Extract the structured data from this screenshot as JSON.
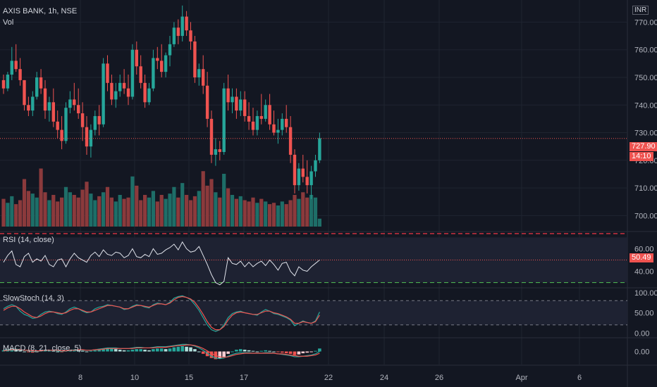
{
  "header": {
    "symbol": "AXIS BANK, 1h, NSE",
    "volume_label": "Vol",
    "currency": "INR"
  },
  "colors": {
    "background": "#131722",
    "grid": "#1f2430",
    "up": "#26a69a",
    "down": "#ef5350",
    "vol_up": "#1e6e68",
    "vol_down": "#8b3a3c",
    "text": "#b2b5be",
    "rsi_line": "#e0e3eb",
    "stoch_k": "#26a69a",
    "stoch_d": "#ef5350",
    "dashed_red": "#f23645",
    "dashed_green": "#4caf50"
  },
  "price_badge": {
    "price": "727.90",
    "countdown": "14:10"
  },
  "chart_data": [
    {
      "type": "candlestick",
      "pane": "price",
      "ylim": [
        695,
        778
      ],
      "y_ticks": [
        "770.00",
        "760.00",
        "750.00",
        "740.00",
        "730.00",
        "720.00",
        "710.00",
        "700.00"
      ],
      "x_ticks": [
        "8",
        "10",
        "15",
        "17",
        "22",
        "24",
        "26",
        "Apr",
        "6"
      ],
      "last_price": 727.9,
      "ohlc": [
        [
          749,
          751,
          744,
          746
        ],
        [
          746,
          752,
          745,
          751
        ],
        [
          751,
          761,
          749,
          756
        ],
        [
          756,
          762,
          752,
          753
        ],
        [
          753,
          757,
          747,
          749
        ],
        [
          749,
          749,
          738,
          740
        ],
        [
          740,
          743,
          736,
          738
        ],
        [
          738,
          745,
          736,
          743
        ],
        [
          743,
          752,
          742,
          750
        ],
        [
          750,
          753,
          744,
          746
        ],
        [
          746,
          749,
          735,
          738
        ],
        [
          738,
          743,
          734,
          741
        ],
        [
          741,
          746,
          732,
          734
        ],
        [
          734,
          738,
          728,
          731
        ],
        [
          731,
          736,
          724,
          727
        ],
        [
          727,
          741,
          726,
          739
        ],
        [
          739,
          745,
          737,
          742
        ],
        [
          742,
          748,
          738,
          740
        ],
        [
          740,
          746,
          735,
          737
        ],
        [
          737,
          741,
          727,
          732
        ],
        [
          732,
          736,
          722,
          725
        ],
        [
          725,
          733,
          721,
          731
        ],
        [
          731,
          738,
          729,
          736
        ],
        [
          736,
          740,
          729,
          733
        ],
        [
          733,
          757,
          732,
          755
        ],
        [
          755,
          758,
          745,
          748
        ],
        [
          748,
          751,
          740,
          742
        ],
        [
          742,
          748,
          739,
          745
        ],
        [
          745,
          751,
          743,
          748
        ],
        [
          748,
          753,
          744,
          746
        ],
        [
          746,
          751,
          740,
          743
        ],
        [
          743,
          762,
          742,
          760
        ],
        [
          760,
          763,
          751,
          754
        ],
        [
          754,
          758,
          746,
          748
        ],
        [
          748,
          751,
          739,
          741
        ],
        [
          741,
          748,
          740,
          746
        ],
        [
          746,
          760,
          745,
          757
        ],
        [
          757,
          761,
          753,
          756
        ],
        [
          756,
          762,
          750,
          752
        ],
        [
          752,
          759,
          750,
          758
        ],
        [
          758,
          765,
          754,
          762
        ],
        [
          762,
          770,
          761,
          768
        ],
        [
          768,
          771,
          762,
          765
        ],
        [
          765,
          776,
          763,
          772
        ],
        [
          772,
          774,
          765,
          767
        ],
        [
          767,
          770,
          760,
          763
        ],
        [
          763,
          765,
          748,
          750
        ],
        [
          750,
          755,
          747,
          753
        ],
        [
          753,
          758,
          744,
          747
        ],
        [
          747,
          752,
          732,
          735
        ],
        [
          735,
          738,
          719,
          722
        ],
        [
          722,
          728,
          718,
          724
        ],
        [
          724,
          727,
          720,
          723
        ],
        [
          723,
          748,
          722,
          746
        ],
        [
          746,
          751,
          738,
          741
        ],
        [
          741,
          746,
          737,
          743
        ],
        [
          743,
          746,
          735,
          738
        ],
        [
          738,
          745,
          736,
          742
        ],
        [
          742,
          745,
          734,
          736
        ],
        [
          736,
          741,
          731,
          734
        ],
        [
          734,
          739,
          729,
          731
        ],
        [
          731,
          738,
          729,
          736
        ],
        [
          736,
          744,
          733,
          735
        ],
        [
          735,
          742,
          734,
          740
        ],
        [
          740,
          744,
          731,
          733
        ],
        [
          733,
          738,
          729,
          730
        ],
        [
          730,
          735,
          726,
          731
        ],
        [
          731,
          737,
          729,
          735
        ],
        [
          735,
          740,
          730,
          732
        ],
        [
          732,
          736,
          719,
          722
        ],
        [
          722,
          724,
          708,
          711
        ],
        [
          711,
          719,
          709,
          717
        ],
        [
          717,
          722,
          712,
          714
        ],
        [
          714,
          720,
          708,
          711
        ],
        [
          711,
          718,
          706,
          716
        ],
        [
          716,
          722,
          714,
          720
        ],
        [
          720,
          730,
          719,
          728
        ]
      ]
    },
    {
      "type": "bar",
      "pane": "volume",
      "name": "Vol",
      "values": [
        21,
        18,
        23,
        17,
        20,
        36,
        27,
        25,
        22,
        44,
        26,
        20,
        24,
        19,
        22,
        30,
        26,
        24,
        22,
        28,
        34,
        25,
        20,
        23,
        26,
        30,
        22,
        19,
        24,
        21,
        22,
        38,
        31,
        20,
        24,
        22,
        27,
        19,
        24,
        21,
        25,
        30,
        22,
        33,
        24,
        20,
        23,
        27,
        42,
        31,
        36,
        26,
        22,
        40,
        29,
        24,
        21,
        23,
        20,
        19,
        22,
        18,
        21,
        19,
        17,
        18,
        16,
        19,
        17,
        20,
        24,
        21,
        26,
        22,
        24,
        22,
        6
      ],
      "max_scale": 48
    },
    {
      "type": "line",
      "pane": "rsi",
      "title": "RSI (14, close)",
      "ylim": [
        26,
        74
      ],
      "y_ticks": [
        "60.00",
        "40.00"
      ],
      "last_value": "50.49",
      "upper_level": 70,
      "lower_level": 30,
      "values": [
        48,
        54,
        58,
        46,
        44,
        53,
        56,
        48,
        51,
        49,
        54,
        46,
        44,
        50,
        51,
        44,
        51,
        56,
        52,
        50,
        48,
        54,
        57,
        53,
        59,
        55,
        54,
        57,
        56,
        52,
        54,
        60,
        53,
        52,
        55,
        53,
        60,
        55,
        56,
        59,
        61,
        64,
        59,
        66,
        60,
        57,
        58,
        62,
        54,
        46,
        37,
        30,
        28,
        31,
        52,
        47,
        46,
        49,
        44,
        48,
        44,
        47,
        49,
        45,
        50,
        46,
        41,
        47,
        48,
        40,
        36,
        44,
        41,
        40,
        44,
        47,
        50
      ]
    },
    {
      "type": "line",
      "pane": "stochastic",
      "title": "SlowStoch (14, 3)",
      "ylim": [
        -10,
        110
      ],
      "y_ticks": [
        "100.00",
        "50.00",
        "0.00"
      ],
      "upper_level": 80,
      "lower_level": 20,
      "series": [
        {
          "name": "%K",
          "values": [
            60,
            66,
            70,
            66,
            54,
            46,
            42,
            36,
            38,
            46,
            52,
            54,
            52,
            48,
            46,
            52,
            60,
            64,
            60,
            54,
            50,
            52,
            60,
            64,
            66,
            70,
            68,
            66,
            64,
            58,
            60,
            66,
            70,
            68,
            64,
            62,
            70,
            74,
            72,
            70,
            76,
            86,
            90,
            92,
            88,
            82,
            70,
            56,
            38,
            20,
            8,
            4,
            8,
            20,
            38,
            48,
            52,
            54,
            50,
            48,
            46,
            44,
            52,
            58,
            54,
            48,
            46,
            42,
            38,
            32,
            18,
            24,
            30,
            26,
            24,
            30,
            52
          ]
        },
        {
          "name": "%D",
          "values": [
            56,
            62,
            66,
            66,
            60,
            52,
            46,
            40,
            38,
            42,
            48,
            52,
            52,
            50,
            48,
            50,
            56,
            60,
            60,
            56,
            52,
            52,
            56,
            60,
            64,
            68,
            68,
            66,
            64,
            60,
            60,
            64,
            68,
            68,
            66,
            64,
            68,
            72,
            72,
            70,
            74,
            82,
            88,
            90,
            88,
            84,
            76,
            62,
            46,
            28,
            14,
            8,
            8,
            16,
            32,
            44,
            50,
            52,
            50,
            48,
            46,
            46,
            50,
            54,
            54,
            50,
            48,
            44,
            40,
            34,
            24,
            24,
            28,
            26,
            24,
            28,
            44
          ]
        }
      ]
    },
    {
      "type": "histogram",
      "pane": "macd",
      "title": "MACD (8, 21, close, 5)",
      "ylim": [
        -22,
        22
      ],
      "y_ticks": [
        "0.00"
      ],
      "histogram": [
        2,
        3,
        4,
        3,
        2,
        0,
        -1,
        -2,
        -1,
        1,
        2,
        2,
        1,
        0,
        -1,
        1,
        2,
        3,
        2,
        1,
        0,
        1,
        2,
        3,
        4,
        5,
        5,
        4,
        3,
        2,
        2,
        3,
        4,
        4,
        3,
        2,
        4,
        5,
        5,
        4,
        5,
        7,
        8,
        9,
        8,
        7,
        4,
        0,
        -4,
        -8,
        -11,
        -13,
        -12,
        -9,
        -4,
        0,
        3,
        4,
        3,
        2,
        1,
        0,
        1,
        2,
        1,
        0,
        -1,
        -2,
        -3,
        -4,
        -6,
        -5,
        -3,
        -2,
        -1,
        1,
        5
      ],
      "series": [
        {
          "name": "MACD",
          "values": [
            2,
            3,
            4,
            4,
            3,
            2,
            1,
            0,
            0,
            1,
            2,
            2,
            2,
            1,
            0,
            1,
            2,
            3,
            3,
            2,
            2,
            2,
            3,
            4,
            5,
            6,
            6,
            6,
            5,
            5,
            5,
            6,
            7,
            7,
            6,
            6,
            7,
            8,
            8,
            8,
            9,
            10,
            11,
            12,
            12,
            11,
            9,
            6,
            2,
            -3,
            -8,
            -11,
            -12,
            -11,
            -8,
            -5,
            -3,
            -2,
            -2,
            -2,
            -3,
            -3,
            -3,
            -2,
            -2,
            -3,
            -4,
            -5,
            -6,
            -7,
            -9,
            -9,
            -8,
            -7,
            -6,
            -4,
            0
          ]
        },
        {
          "name": "Signal",
          "values": [
            1,
            2,
            3,
            3,
            3,
            2,
            2,
            1,
            1,
            1,
            2,
            2,
            2,
            2,
            1,
            1,
            2,
            2,
            3,
            3,
            2,
            2,
            3,
            3,
            4,
            5,
            5,
            5,
            5,
            5,
            5,
            5,
            6,
            6,
            6,
            6,
            6,
            7,
            7,
            7,
            8,
            9,
            10,
            10,
            11,
            11,
            10,
            8,
            5,
            1,
            -3,
            -7,
            -9,
            -10,
            -9,
            -7,
            -5,
            -4,
            -3,
            -3,
            -3,
            -3,
            -3,
            -3,
            -3,
            -3,
            -4,
            -4,
            -5,
            -6,
            -7,
            -8,
            -8,
            -8,
            -7,
            -6,
            -3
          ]
        }
      ]
    }
  ]
}
